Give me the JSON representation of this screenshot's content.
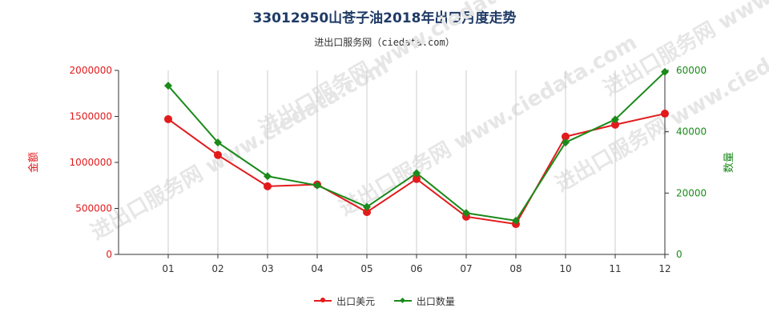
{
  "title": "33012950山苍子油2018年出口月度走势",
  "subtitle": "进出口服务网（ciedata.com）",
  "watermark": "进出口服务网 www.ciedata.com",
  "colors": {
    "amount": "#e31a1c",
    "quantity": "#1a8a1a",
    "axis_left": "#e31a1c",
    "axis_right": "#1a8a1a",
    "grid": "#cccccc"
  },
  "chart_data": {
    "type": "line",
    "categories": [
      "01",
      "02",
      "03",
      "04",
      "05",
      "06",
      "07",
      "08",
      "10",
      "11",
      "12"
    ],
    "left_axis": {
      "label": "金额",
      "ylim": [
        0,
        2000000
      ],
      "ticks": [
        "0",
        "500000",
        "1000000",
        "1500000",
        "2000000"
      ]
    },
    "right_axis": {
      "label": "数量",
      "ylim": [
        0,
        60000
      ],
      "ticks": [
        "0",
        "20000",
        "40000",
        "60000"
      ]
    },
    "series": [
      {
        "name": "出口美元",
        "axis": "left",
        "marker": "circle",
        "values": [
          1470000,
          1080000,
          740000,
          760000,
          460000,
          820000,
          410000,
          330000,
          1280000,
          1410000,
          1530000
        ]
      },
      {
        "name": "出口数量",
        "axis": "right",
        "marker": "diamond",
        "values": [
          55000,
          36500,
          25500,
          22500,
          15500,
          26500,
          13500,
          11000,
          36500,
          44000,
          59500
        ]
      }
    ],
    "grid": "vertical",
    "legend": "bottom-center"
  }
}
